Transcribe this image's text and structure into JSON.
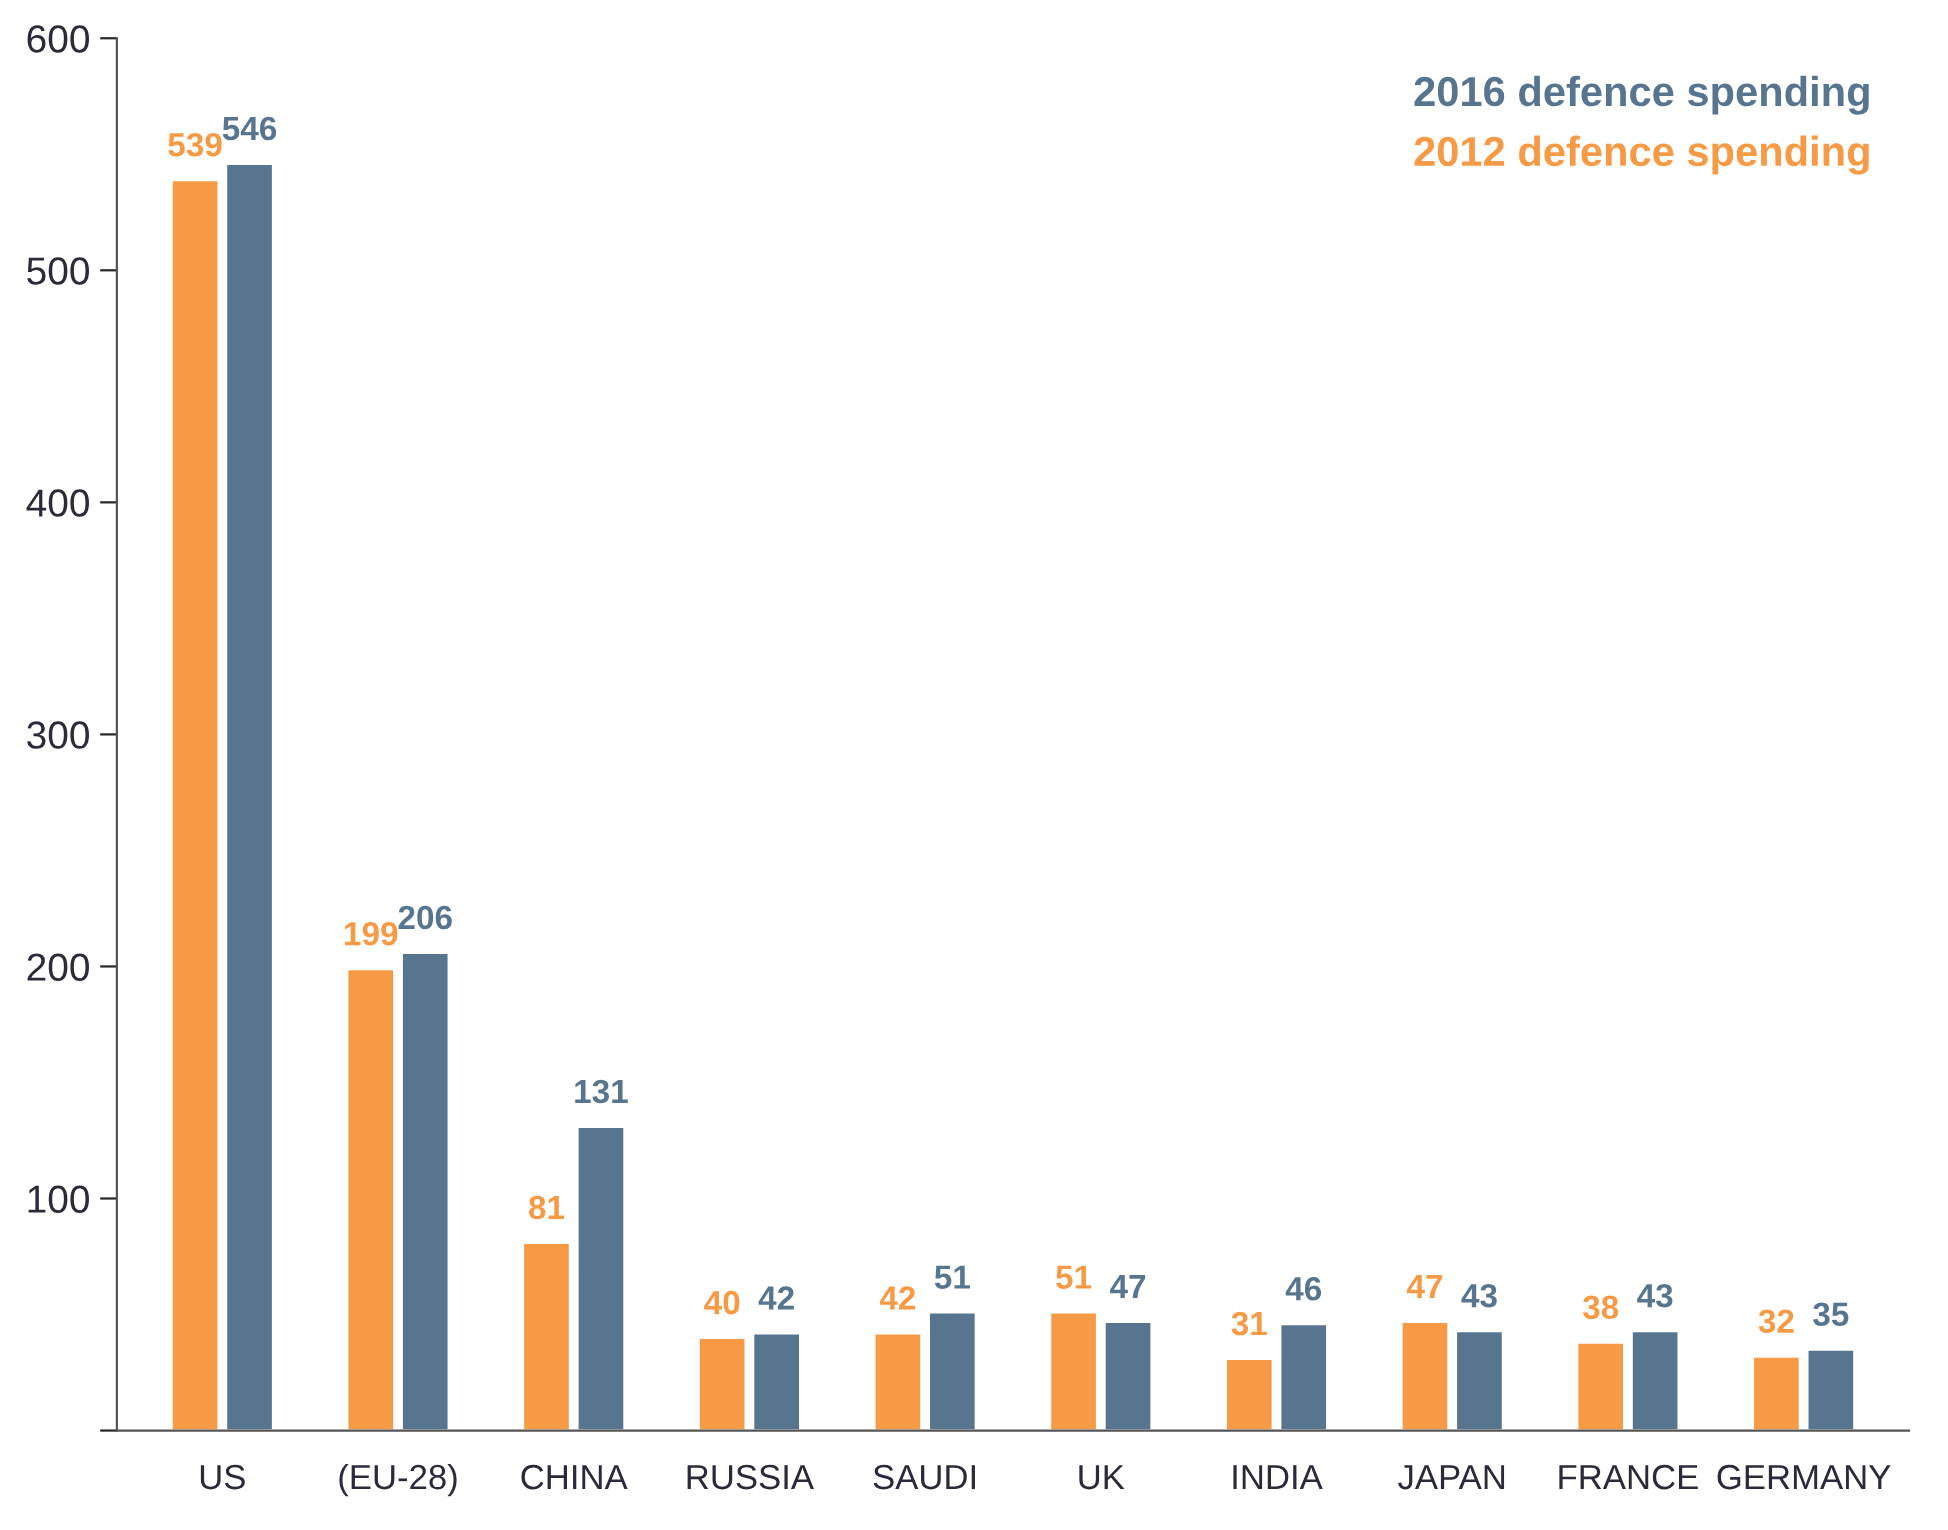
{
  "chart_data": {
    "type": "bar",
    "categories": [
      "US",
      "(EU-28)",
      "CHINA",
      "RUSSIA",
      "SAUDI",
      "UK",
      "INDIA",
      "JAPAN",
      "FRANCE",
      "GERMANY"
    ],
    "series": [
      {
        "name": "2012 defence spending",
        "color": "#f79a45",
        "values": [
          539,
          199,
          81,
          40,
          42,
          51,
          31,
          47,
          38,
          32
        ]
      },
      {
        "name": "2016 defence spending",
        "color": "#587590",
        "values": [
          546,
          206,
          131,
          42,
          51,
          47,
          46,
          43,
          43,
          35
        ]
      }
    ],
    "ylim": [
      0,
      600
    ],
    "yticks": [
      {
        "value": 0,
        "label": null
      },
      100,
      200,
      300,
      400,
      500,
      600
    ],
    "data_labels": true,
    "legend": "top right",
    "grid": false
  }
}
